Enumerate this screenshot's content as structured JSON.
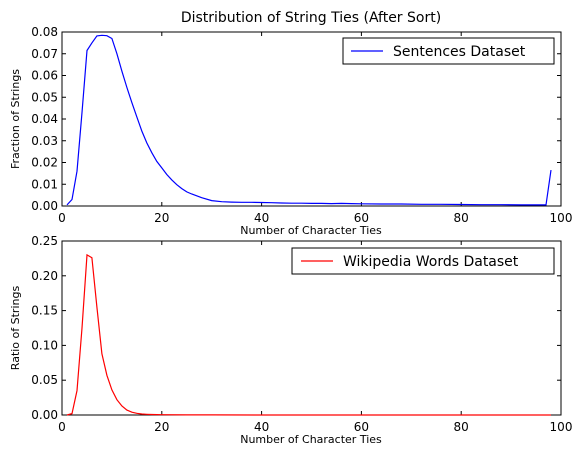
{
  "chart_data": [
    {
      "type": "line",
      "title": "Distribution of String Ties (After Sort)",
      "xlabel": "Number of Character Ties",
      "ylabel": "Fraction of Strings",
      "xlim": [
        0,
        100
      ],
      "ylim": [
        0,
        0.08
      ],
      "xticks": [
        "0",
        "20",
        "40",
        "60",
        "80",
        "100"
      ],
      "yticks": [
        "0.00",
        "0.01",
        "0.02",
        "0.03",
        "0.04",
        "0.05",
        "0.06",
        "0.07",
        "0.08"
      ],
      "legend_position": "top-right",
      "series": [
        {
          "name": "Sentences Dataset",
          "color": "#0000ff",
          "x": [
            1,
            2,
            3,
            4,
            5,
            6,
            7,
            8,
            9,
            10,
            11,
            12,
            13,
            14,
            15,
            16,
            17,
            18,
            19,
            20,
            21,
            22,
            23,
            24,
            25,
            26,
            28,
            30,
            32,
            34,
            36,
            38,
            40,
            42,
            44,
            46,
            48,
            50,
            52,
            54,
            56,
            58,
            60,
            64,
            68,
            72,
            76,
            80,
            84,
            88,
            92,
            96,
            97,
            98
          ],
          "y": [
            0.0005,
            0.003,
            0.016,
            0.043,
            0.0715,
            0.075,
            0.0782,
            0.0785,
            0.0783,
            0.077,
            0.07,
            0.062,
            0.0545,
            0.0475,
            0.041,
            0.0345,
            0.029,
            0.0245,
            0.0205,
            0.0175,
            0.0145,
            0.012,
            0.0098,
            0.008,
            0.0065,
            0.0055,
            0.0038,
            0.0025,
            0.002,
            0.0018,
            0.0017,
            0.0017,
            0.0016,
            0.0015,
            0.0014,
            0.0013,
            0.0013,
            0.0012,
            0.0012,
            0.0011,
            0.0012,
            0.0011,
            0.001,
            0.0009,
            0.0009,
            0.0008,
            0.0008,
            0.0007,
            0.0006,
            0.0006,
            0.0005,
            0.0005,
            0.0005,
            0.0165
          ]
        }
      ]
    },
    {
      "type": "line",
      "title": "",
      "xlabel": "Number of Character Ties",
      "ylabel": "Ratio of Strings",
      "xlim": [
        0,
        100
      ],
      "ylim": [
        0,
        0.25
      ],
      "xticks": [
        "0",
        "20",
        "40",
        "60",
        "80",
        "100"
      ],
      "yticks": [
        "0.00",
        "0.05",
        "0.10",
        "0.15",
        "0.20",
        "0.25"
      ],
      "legend_position": "top-right",
      "series": [
        {
          "name": "Wikipedia Words Dataset",
          "color": "#ff0000",
          "x": [
            1,
            2,
            3,
            4,
            5,
            6,
            7,
            8,
            9,
            10,
            11,
            12,
            13,
            14,
            15,
            16,
            17,
            18,
            20,
            25,
            30,
            40,
            50,
            60,
            70,
            80,
            90,
            98
          ],
          "y": [
            0.0,
            0.002,
            0.035,
            0.125,
            0.23,
            0.226,
            0.155,
            0.088,
            0.057,
            0.036,
            0.022,
            0.013,
            0.007,
            0.004,
            0.0025,
            0.0015,
            0.001,
            0.0007,
            0.0004,
            0.0002,
            0.0001,
            5e-05,
            2e-05,
            1e-05,
            0.0,
            0.0,
            0.0,
            0.0
          ]
        }
      ]
    }
  ]
}
